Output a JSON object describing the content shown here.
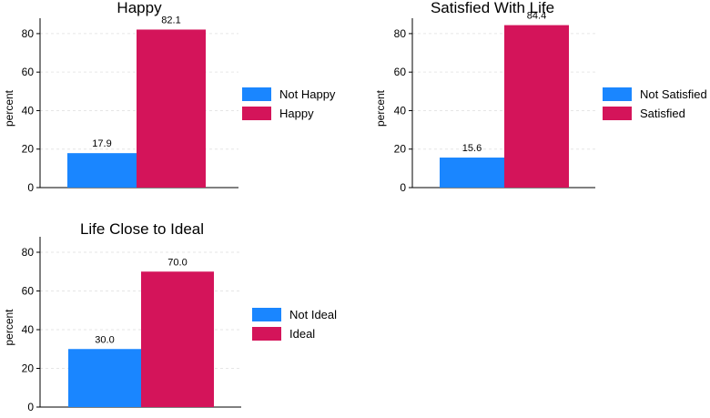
{
  "colors": {
    "series1": "#1a86ff",
    "series2": "#d4145a",
    "grid": "#e6e6e6",
    "axis": "#000000"
  },
  "chart_data": [
    {
      "type": "bar",
      "title": "Happy",
      "ylabel": "percent",
      "ylim": [
        0,
        88
      ],
      "yticks": [
        0,
        20,
        40,
        60,
        80
      ],
      "grid": true,
      "legend_position": "right",
      "series": [
        {
          "name": "Not Happy",
          "value": 17.9,
          "label": "17.9"
        },
        {
          "name": "Happy",
          "value": 82.1,
          "label": "82.1"
        }
      ]
    },
    {
      "type": "bar",
      "title": "Satisfied With Life",
      "ylabel": "percent",
      "ylim": [
        0,
        88
      ],
      "yticks": [
        0,
        20,
        40,
        60,
        80
      ],
      "grid": true,
      "legend_position": "right",
      "series": [
        {
          "name": "Not Satisfied",
          "value": 15.6,
          "label": "15.6"
        },
        {
          "name": "Satisfied",
          "value": 84.4,
          "label": "84.4"
        }
      ]
    },
    {
      "type": "bar",
      "title": "Life Close to Ideal",
      "ylabel": "percent",
      "ylim": [
        0,
        88
      ],
      "yticks": [
        0,
        20,
        40,
        60,
        80
      ],
      "grid": true,
      "legend_position": "right",
      "series": [
        {
          "name": "Not Ideal",
          "value": 30.0,
          "label": "30.0"
        },
        {
          "name": "Ideal",
          "value": 70.0,
          "label": "70.0"
        }
      ]
    }
  ]
}
